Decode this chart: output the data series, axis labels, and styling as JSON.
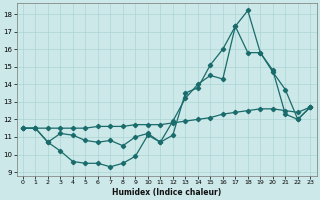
{
  "xlabel": "Humidex (Indice chaleur)",
  "bg_color": "#cce8e8",
  "grid_color": "#aad4d4",
  "line_color": "#1a6b6b",
  "xlim": [
    -0.5,
    23.5
  ],
  "ylim": [
    8.8,
    18.6
  ],
  "yticks": [
    9,
    10,
    11,
    12,
    13,
    14,
    15,
    16,
    17,
    18
  ],
  "xticks": [
    0,
    1,
    2,
    3,
    4,
    5,
    6,
    7,
    8,
    9,
    10,
    11,
    12,
    13,
    14,
    15,
    16,
    17,
    18,
    19,
    20,
    21,
    22,
    23
  ],
  "series1_x": [
    0,
    1,
    2,
    3,
    4,
    5,
    6,
    7,
    8,
    9,
    10,
    11,
    12,
    13,
    14,
    15,
    16,
    17,
    18,
    19,
    20,
    21,
    22,
    23
  ],
  "series1_y": [
    11.5,
    11.5,
    10.7,
    10.2,
    9.6,
    9.5,
    9.5,
    9.3,
    9.5,
    9.9,
    11.1,
    10.7,
    11.1,
    13.5,
    13.8,
    15.1,
    16.0,
    17.3,
    18.2,
    15.8,
    14.7,
    13.7,
    12.0,
    12.7
  ],
  "series2_x": [
    0,
    1,
    2,
    3,
    4,
    5,
    6,
    7,
    8,
    9,
    10,
    11,
    12,
    13,
    14,
    15,
    16,
    17,
    18,
    19,
    20,
    21,
    22,
    23
  ],
  "series2_y": [
    11.5,
    11.5,
    10.7,
    11.2,
    11.1,
    10.8,
    10.7,
    10.8,
    10.5,
    11.0,
    11.2,
    10.7,
    11.9,
    13.2,
    14.0,
    14.5,
    14.3,
    17.3,
    15.8,
    15.8,
    14.8,
    12.3,
    12.0,
    12.7
  ],
  "series3_x": [
    0,
    1,
    2,
    3,
    4,
    5,
    6,
    7,
    8,
    9,
    10,
    11,
    12,
    13,
    14,
    15,
    16,
    17,
    18,
    19,
    20,
    21,
    22,
    23
  ],
  "series3_y": [
    11.5,
    11.5,
    11.5,
    11.5,
    11.5,
    11.5,
    11.6,
    11.6,
    11.6,
    11.7,
    11.7,
    11.7,
    11.8,
    11.9,
    12.0,
    12.1,
    12.3,
    12.4,
    12.5,
    12.6,
    12.6,
    12.5,
    12.4,
    12.7
  ]
}
